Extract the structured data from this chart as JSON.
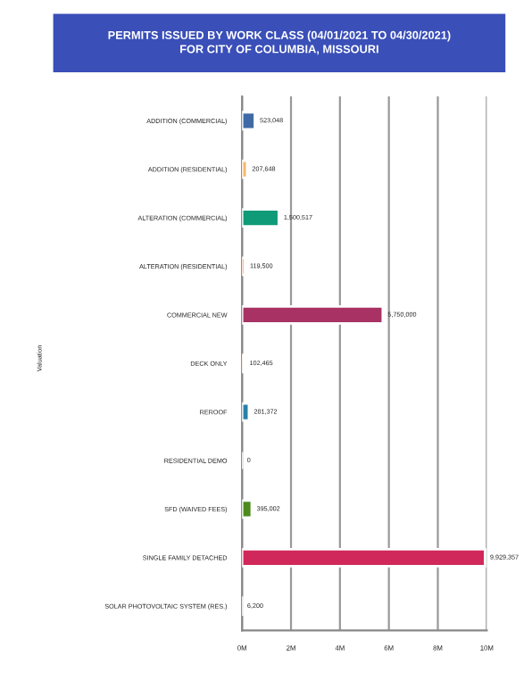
{
  "chart_data": {
    "type": "bar",
    "orientation": "horizontal",
    "title": "PERMITS ISSUED BY WORK CLASS (04/01/2021 TO 04/30/2021)\nFOR CITY OF COLUMBIA, MISSOURI",
    "annotations": [
      "Valuation"
    ],
    "categories": [
      "ADDITION (COMMERCIAL)",
      "ADDITION (RESIDENTIAL)",
      "ALTERATION (COMMERCIAL)",
      "ALTERATION (RESIDENTIAL)",
      "COMMERCIAL NEW",
      "DECK ONLY",
      "REROOF",
      "RESIDENTIAL DEMO",
      "SFD (WAIVED FEES)",
      "SINGLE FAMILY DETACHED",
      "SOLAR PHOTOVOLTAIC SYSTEM (RES.)"
    ],
    "values": [
      523048,
      207648,
      1500517,
      119500,
      5750000,
      102465,
      281372,
      0,
      395002,
      9929357,
      6200
    ],
    "colors": [
      "#3f6aa6",
      "#f5b66a",
      "#0f9a78",
      "#f07830",
      "#a83263",
      "#f5b66a",
      "#2a7fa8",
      null,
      "#4c8a1e",
      "#d0285a",
      "#3f6aa6"
    ],
    "value_labels": [
      "523,048",
      "207,648",
      "1,500,517",
      "119,500",
      "5,750,000",
      "102,465",
      "281,372",
      "0",
      "395,002",
      "9,929,357",
      "6,200"
    ],
    "xlim": [
      0,
      10000000
    ],
    "xticks": [
      {
        "value": 0,
        "label": "0M"
      },
      {
        "value": 2000000,
        "label": "2M"
      },
      {
        "value": 4000000,
        "label": "4M"
      },
      {
        "value": 6000000,
        "label": "6M"
      },
      {
        "value": 8000000,
        "label": "8M"
      },
      {
        "value": 10000000,
        "label": "10M"
      }
    ],
    "grid": "x",
    "legend": false
  }
}
